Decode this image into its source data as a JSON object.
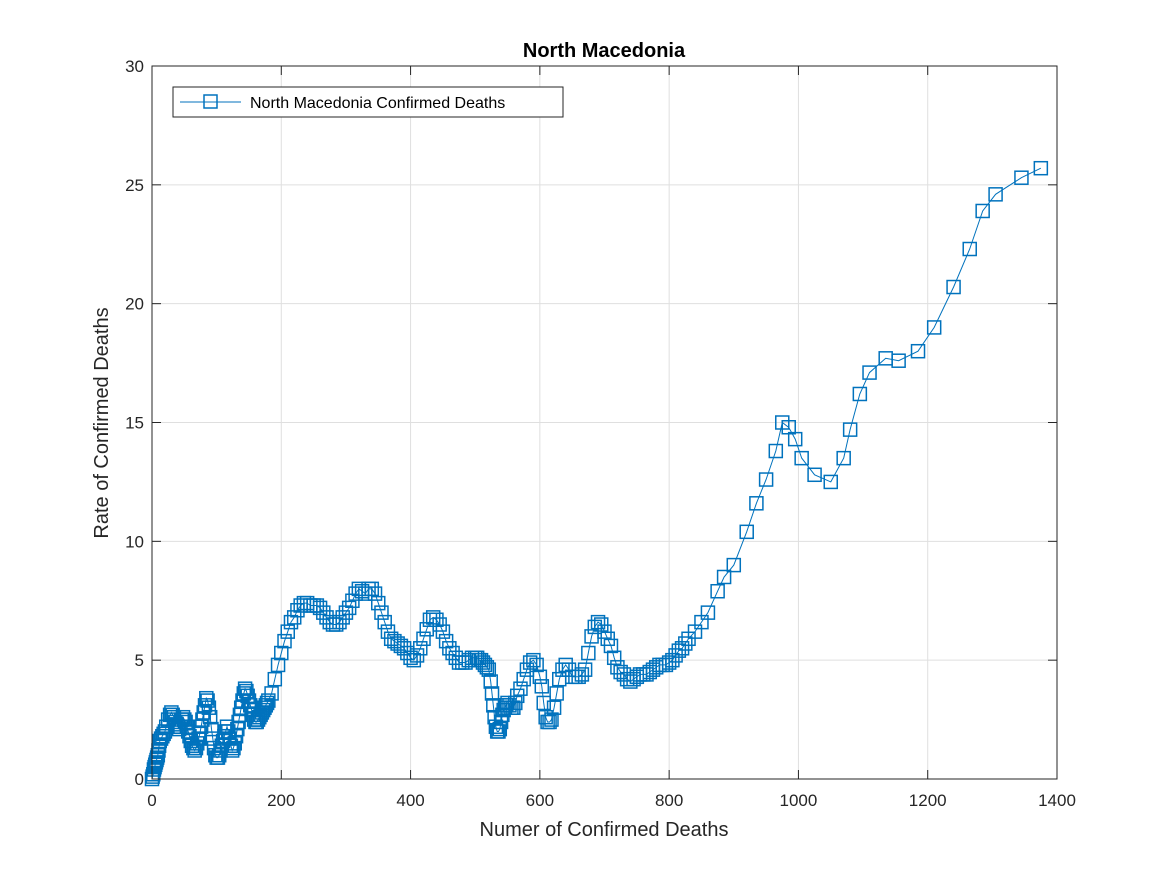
{
  "chart_data": {
    "type": "line",
    "title": "North Macedonia",
    "xlabel": "Numer of Confirmed Deaths",
    "ylabel": "Rate of Confirmed Deaths",
    "xlim": [
      0,
      1400
    ],
    "ylim": [
      0,
      30
    ],
    "xticks": [
      "0",
      "200",
      "400",
      "600",
      "800",
      "1000",
      "1200",
      "1400"
    ],
    "yticks": [
      "0",
      "5",
      "10",
      "15",
      "20",
      "25",
      "30"
    ],
    "grid": true,
    "legend_position": "top-left",
    "series_color": "#0072BD",
    "marker": "square",
    "series": [
      {
        "name": "North Macedonia Confirmed Deaths",
        "x": [
          0,
          1,
          2,
          3,
          4,
          5,
          6,
          7,
          8,
          9,
          10,
          11,
          12,
          14,
          16,
          18,
          20,
          22,
          25,
          28,
          30,
          32,
          34,
          36,
          38,
          40,
          42,
          44,
          46,
          48,
          50,
          52,
          54,
          56,
          58,
          60,
          62,
          64,
          66,
          68,
          70,
          72,
          74,
          76,
          78,
          80,
          82,
          84,
          86,
          88,
          90,
          92,
          94,
          96,
          98,
          100,
          102,
          104,
          106,
          108,
          110,
          112,
          114,
          116,
          118,
          120,
          122,
          124,
          126,
          128,
          130,
          132,
          134,
          136,
          138,
          140,
          142,
          144,
          146,
          148,
          150,
          152,
          154,
          156,
          158,
          160,
          162,
          164,
          166,
          168,
          170,
          172,
          174,
          176,
          178,
          180,
          185,
          190,
          195,
          200,
          205,
          210,
          215,
          220,
          225,
          230,
          235,
          240,
          245,
          250,
          255,
          260,
          265,
          270,
          275,
          280,
          285,
          290,
          295,
          300,
          305,
          310,
          315,
          320,
          325,
          330,
          335,
          340,
          345,
          350,
          355,
          360,
          365,
          370,
          375,
          380,
          385,
          390,
          395,
          400,
          405,
          410,
          415,
          420,
          425,
          430,
          435,
          440,
          445,
          450,
          455,
          460,
          465,
          470,
          475,
          480,
          485,
          490,
          495,
          500,
          503,
          506,
          509,
          512,
          515,
          518,
          521,
          524,
          526,
          528,
          530,
          532,
          534,
          536,
          538,
          540,
          542,
          544,
          546,
          548,
          550,
          553,
          556,
          559,
          562,
          565,
          570,
          575,
          580,
          585,
          590,
          595,
          600,
          603,
          606,
          609,
          612,
          615,
          618,
          622,
          626,
          630,
          635,
          640,
          645,
          650,
          655,
          660,
          665,
          670,
          675,
          680,
          685,
          690,
          695,
          700,
          705,
          710,
          715,
          720,
          725,
          730,
          735,
          740,
          745,
          750,
          755,
          760,
          765,
          770,
          775,
          780,
          785,
          790,
          795,
          800,
          805,
          810,
          815,
          820,
          825,
          830,
          840,
          850,
          860,
          875,
          885,
          900,
          920,
          935,
          950,
          965,
          975,
          985,
          995,
          1005,
          1025,
          1050,
          1070,
          1080,
          1095,
          1110,
          1135,
          1155,
          1185,
          1210,
          1240,
          1265,
          1285,
          1305,
          1345,
          1375
        ],
        "y": [
          0.0,
          0.1,
          0.2,
          0.4,
          0.5,
          0.6,
          0.7,
          0.8,
          0.9,
          1.0,
          1.2,
          1.4,
          1.6,
          1.7,
          1.8,
          1.9,
          2.0,
          2.2,
          2.5,
          2.7,
          2.8,
          2.7,
          2.6,
          2.4,
          2.3,
          2.2,
          2.1,
          2.2,
          2.5,
          2.6,
          2.5,
          2.4,
          2.2,
          2.0,
          1.8,
          1.6,
          1.4,
          1.3,
          1.2,
          1.3,
          1.5,
          1.7,
          1.9,
          2.2,
          2.5,
          2.8,
          3.1,
          3.4,
          3.3,
          3.0,
          2.6,
          2.1,
          1.7,
          1.3,
          1.0,
          0.9,
          0.9,
          1.0,
          1.2,
          1.4,
          1.6,
          1.8,
          2.0,
          2.2,
          2.0,
          1.7,
          1.4,
          1.2,
          1.3,
          1.5,
          1.8,
          2.1,
          2.4,
          2.7,
          3.0,
          3.3,
          3.6,
          3.8,
          3.7,
          3.5,
          3.3,
          3.1,
          2.9,
          2.7,
          2.5,
          2.4,
          2.4,
          2.5,
          2.6,
          2.7,
          2.8,
          2.9,
          3.0,
          3.1,
          3.2,
          3.3,
          3.6,
          4.2,
          4.8,
          5.3,
          5.8,
          6.2,
          6.6,
          6.8,
          7.1,
          7.3,
          7.4,
          7.4,
          7.3,
          7.3,
          7.3,
          7.2,
          7.0,
          6.8,
          6.6,
          6.5,
          6.5,
          6.6,
          6.8,
          7.0,
          7.2,
          7.5,
          7.8,
          8.0,
          7.9,
          7.8,
          8.0,
          8.0,
          7.8,
          7.4,
          7.0,
          6.6,
          6.2,
          5.9,
          5.8,
          5.7,
          5.6,
          5.5,
          5.3,
          5.1,
          5.0,
          5.2,
          5.5,
          5.9,
          6.3,
          6.7,
          6.8,
          6.7,
          6.5,
          6.2,
          5.8,
          5.5,
          5.3,
          5.1,
          4.9,
          4.9,
          4.9,
          5.0,
          5.1,
          5.1,
          5.1,
          5.0,
          5.0,
          4.9,
          4.8,
          4.7,
          4.6,
          4.1,
          3.6,
          3.1,
          2.6,
          2.2,
          2.0,
          2.0,
          2.1,
          2.4,
          2.7,
          2.9,
          3.0,
          3.1,
          3.2,
          3.1,
          3.0,
          3.0,
          3.2,
          3.5,
          3.8,
          4.2,
          4.6,
          4.9,
          5.0,
          4.8,
          4.3,
          3.9,
          3.2,
          2.6,
          2.4,
          2.4,
          2.5,
          3.0,
          3.6,
          4.2,
          4.6,
          4.8,
          4.6,
          4.3,
          4.3,
          4.3,
          4.4,
          4.6,
          5.3,
          6.0,
          6.4,
          6.6,
          6.5,
          6.2,
          5.9,
          5.6,
          5.1,
          4.7,
          4.5,
          4.4,
          4.2,
          4.1,
          4.2,
          4.3,
          4.4,
          4.4,
          4.4,
          4.5,
          4.6,
          4.7,
          4.8,
          4.8,
          4.8,
          4.9,
          5.0,
          5.2,
          5.4,
          5.5,
          5.7,
          5.9,
          6.2,
          6.6,
          7.0,
          7.9,
          8.5,
          9.0,
          10.4,
          11.6,
          12.6,
          13.8,
          15.0,
          14.8,
          14.3,
          13.5,
          12.8,
          12.5,
          13.5,
          14.7,
          16.2,
          17.1,
          17.7,
          17.6,
          18.0,
          19.0,
          20.7,
          22.3,
          23.9,
          24.6,
          25.3,
          25.7
        ]
      }
    ]
  }
}
